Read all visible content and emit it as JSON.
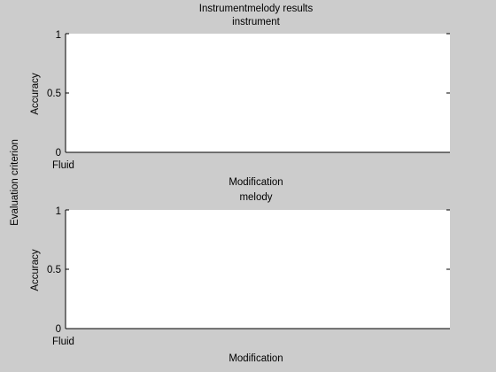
{
  "figure": {
    "title": "Instrumentmelody results",
    "side_label": "Evaluation criterion",
    "background": "#cccccc",
    "axes_background": "#ffffff",
    "ink": "#000000"
  },
  "chart_data": [
    {
      "type": "bar",
      "title": "instrument",
      "xlabel": "Modification",
      "ylabel": "Accuracy",
      "categories": [
        "Fluid"
      ],
      "values": [
        0
      ],
      "ylim": [
        0,
        1
      ],
      "yticks": [
        0,
        0.5,
        1
      ],
      "ytick_labels": [
        "0",
        "0.5",
        "1"
      ],
      "grid": false
    },
    {
      "type": "bar",
      "title": "melody",
      "xlabel": "Modification",
      "ylabel": "Accuracy",
      "categories": [
        "Fluid"
      ],
      "values": [
        0
      ],
      "ylim": [
        0,
        1
      ],
      "yticks": [
        0,
        0.5,
        1
      ],
      "ytick_labels": [
        "0",
        "0.5",
        "1"
      ],
      "grid": false
    }
  ]
}
